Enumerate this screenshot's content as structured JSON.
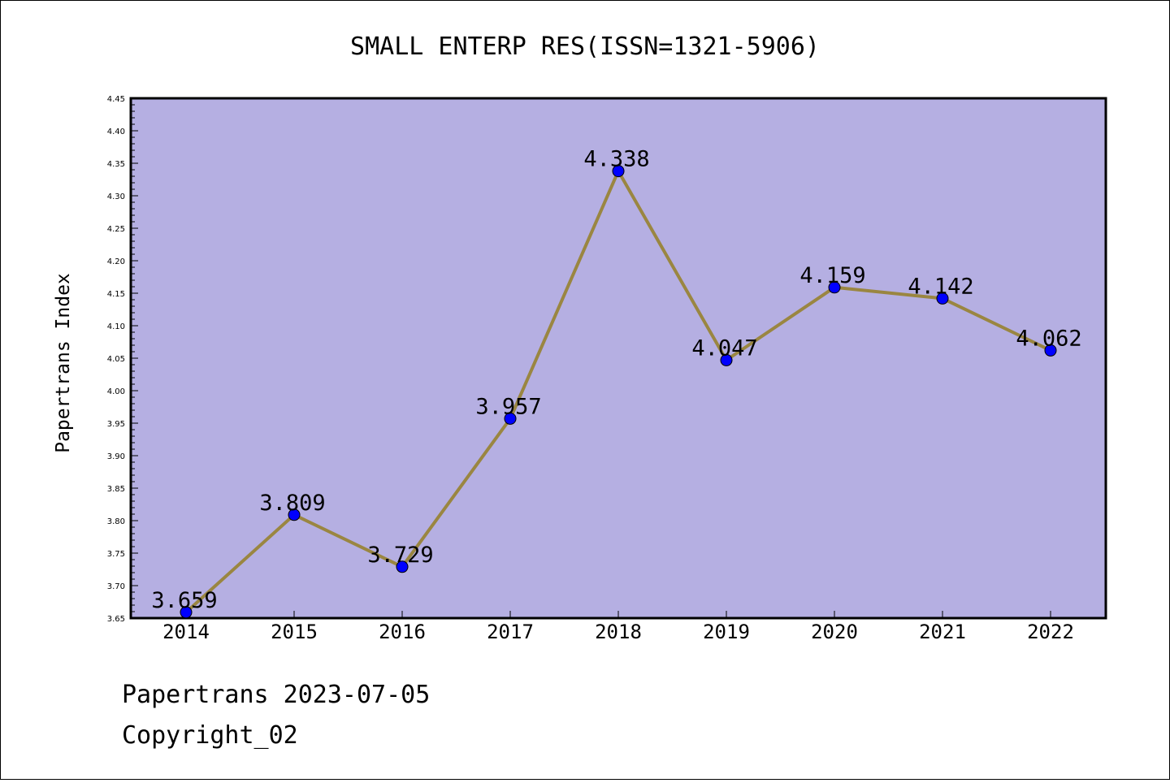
{
  "chart_data": {
    "type": "line",
    "title": "SMALL ENTERP RES(ISSN=1321-5906)",
    "xlabel": "",
    "ylabel": "Papertrans Index",
    "categories": [
      "2014",
      "2015",
      "2016",
      "2017",
      "2018",
      "2019",
      "2020",
      "2021",
      "2022"
    ],
    "series": [
      {
        "values": [
          3.659,
          3.809,
          3.729,
          3.957,
          4.338,
          4.047,
          4.159,
          4.142,
          4.062
        ],
        "labels": [
          "3.659",
          "3.809",
          "3.729",
          "3.957",
          "4.338",
          "4.047",
          "4.159",
          "4.142",
          "4.062"
        ]
      }
    ],
    "ylim": [
      3.65,
      4.45
    ],
    "yticks": [
      "3.65",
      "3.70",
      "3.75",
      "3.80",
      "3.85",
      "3.90",
      "3.95",
      "4.00",
      "4.05",
      "4.10",
      "4.15",
      "4.20",
      "4.25",
      "4.30",
      "4.35",
      "4.40",
      "4.45"
    ],
    "grid": false,
    "legend": "none",
    "colors": {
      "plot_background": "#b5afe2",
      "line": "#9a8641",
      "marker": "#0000ff"
    }
  },
  "footer": {
    "line1": "Papertrans 2023-07-05",
    "line2": "Copyright_02"
  }
}
